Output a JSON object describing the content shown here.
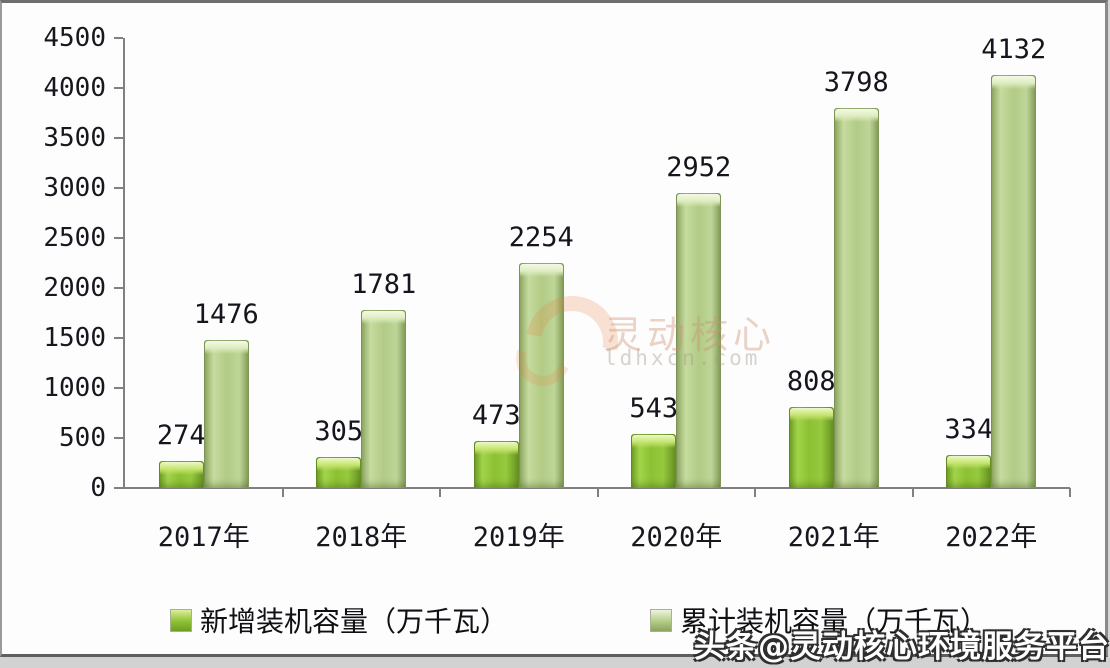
{
  "chart_data": {
    "type": "bar",
    "categories": [
      "2017年",
      "2018年",
      "2019年",
      "2020年",
      "2021年",
      "2022年"
    ],
    "series": [
      {
        "name": "新增装机容量（万千瓦）",
        "color": "#8cc133",
        "values": [
          274,
          305,
          473,
          543,
          808,
          334
        ]
      },
      {
        "name": "累计装机容量（万千瓦）",
        "color": "#b2cb85",
        "values": [
          1476,
          1781,
          2254,
          2952,
          3798,
          4132
        ]
      }
    ],
    "title": "",
    "xlabel": "",
    "ylabel": "",
    "ylim": [
      0,
      4500
    ],
    "yticks": [
      0,
      500,
      1000,
      1500,
      2000,
      2500,
      3000,
      3500,
      4000,
      4500
    ],
    "grid": false,
    "legend_position": "bottom",
    "value_labels": true,
    "axis_color": "#808080",
    "label_color": "#17171f"
  },
  "watermarks": {
    "center_line1": "灵动核心",
    "center_line2": "ldhxcn.com",
    "corner": "头条@灵动核心环境服务平台"
  }
}
